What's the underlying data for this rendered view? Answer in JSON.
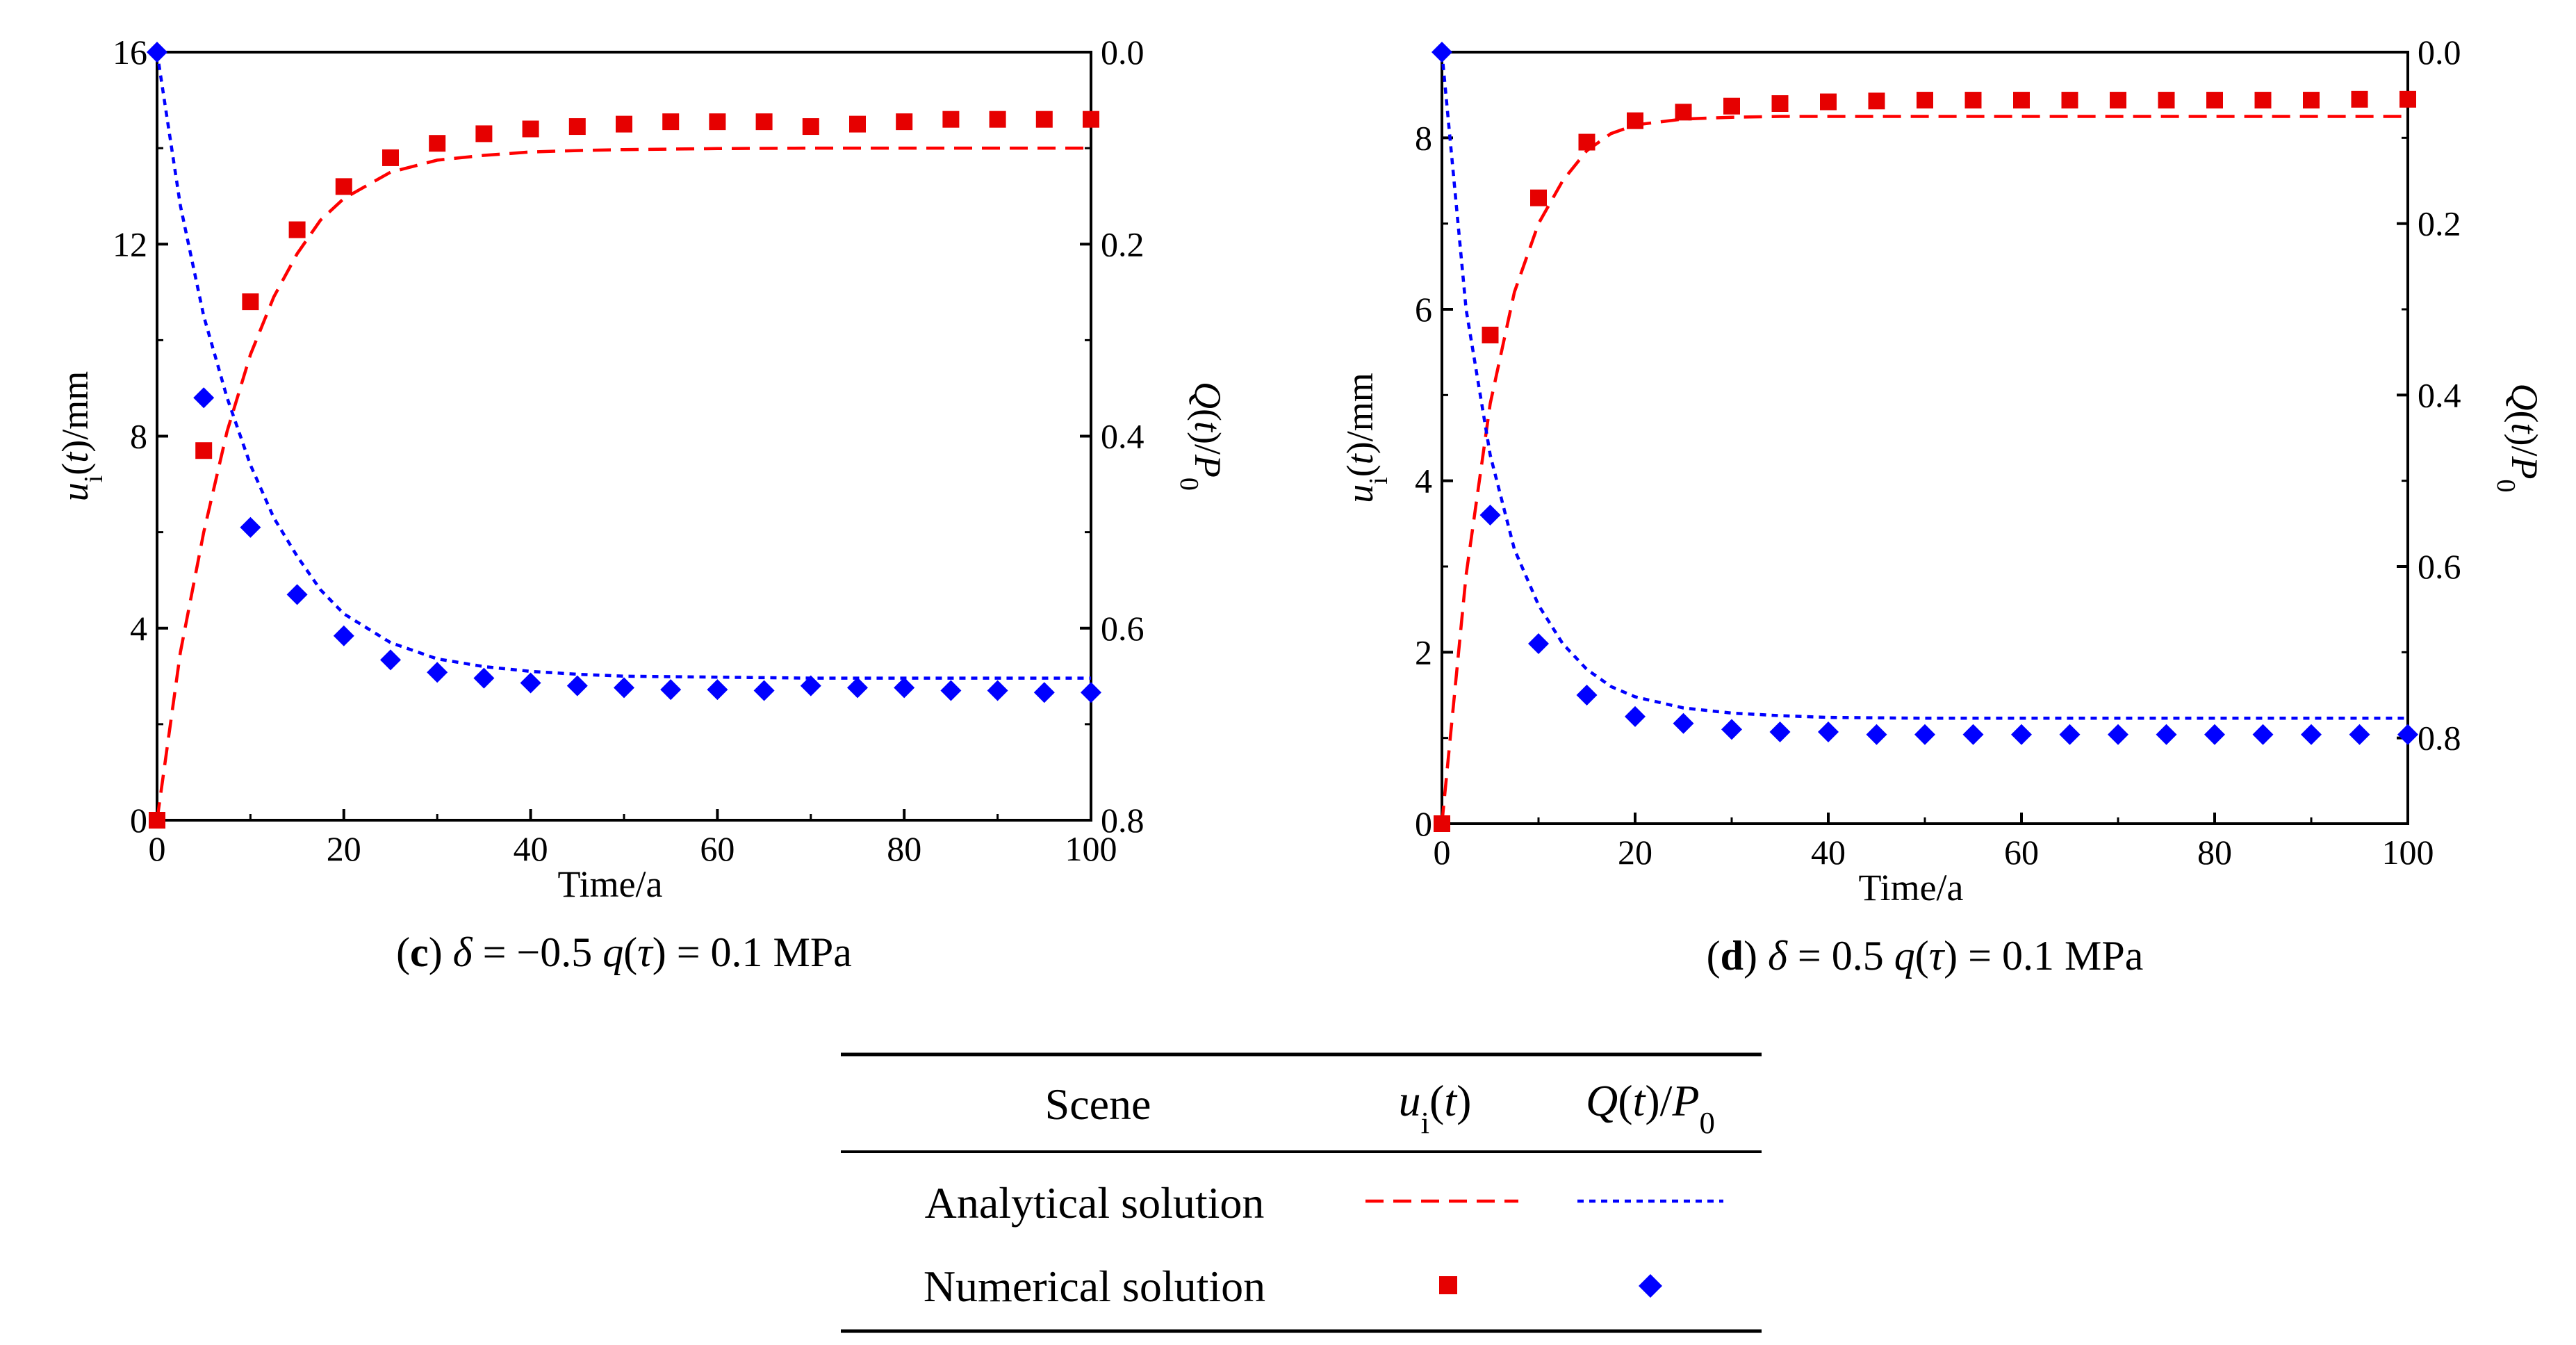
{
  "colors": {
    "analytical_u": "#ff0000",
    "analytical_q": "#0000ff",
    "numerical_u": "#e60000",
    "numerical_q": "#0000ff",
    "axis": "#000000"
  },
  "chart_data": [
    {
      "type": "scatter",
      "panel": "c",
      "caption": {
        "letter": "(c)",
        "rest": " δ = −0.5 q(τ) = 0.1 MPa"
      },
      "xlabel": "Time/a",
      "ylabel": "u_i(t)/mm",
      "y2label": "Q(t)/P_0",
      "xlim": [
        0,
        100
      ],
      "ylim": [
        0,
        16
      ],
      "y2lim": [
        0.0,
        0.8
      ],
      "y2_inverted": true,
      "x_ticks": [
        "0",
        "20",
        "40",
        "60",
        "80",
        "100"
      ],
      "y_ticks": [
        "0",
        "4",
        "8",
        "12",
        "16"
      ],
      "y2_ticks": [
        "0.0",
        "0.2",
        "0.4",
        "0.6",
        "0.8"
      ],
      "series": [
        {
          "name": "Numerical u_i(t)",
          "axis": "left",
          "marker": "square",
          "x": [
            0,
            5,
            10,
            15,
            20,
            25,
            30,
            35,
            40,
            45,
            50,
            55,
            60,
            65,
            70,
            75,
            80,
            85,
            90,
            95,
            100
          ],
          "y": [
            0,
            7.7,
            10.8,
            12.3,
            13.2,
            13.8,
            14.1,
            14.3,
            14.4,
            14.45,
            14.5,
            14.55,
            14.55,
            14.55,
            14.45,
            14.5,
            14.55,
            14.6,
            14.6,
            14.6,
            14.6
          ]
        },
        {
          "name": "Numerical Q(t)/P0",
          "axis": "right",
          "marker": "diamond",
          "x": [
            0,
            5,
            10,
            15,
            20,
            25,
            30,
            35,
            40,
            45,
            50,
            55,
            60,
            65,
            70,
            75,
            80,
            85,
            90,
            95,
            100
          ],
          "y": [
            0.0,
            0.36,
            0.495,
            0.565,
            0.608,
            0.633,
            0.646,
            0.652,
            0.657,
            0.66,
            0.662,
            0.664,
            0.664,
            0.665,
            0.66,
            0.662,
            0.662,
            0.665,
            0.665,
            0.667,
            0.667
          ]
        },
        {
          "name": "Analytical u_i(t)",
          "axis": "left",
          "line": "dashed",
          "x": [
            0,
            2.5,
            5,
            7.5,
            10,
            12.5,
            15,
            17.5,
            20,
            25,
            30,
            35,
            40,
            45,
            50,
            60,
            70,
            80,
            90,
            100
          ],
          "y": [
            0,
            3.5,
            6.0,
            8.1,
            9.7,
            10.9,
            11.8,
            12.5,
            12.95,
            13.5,
            13.75,
            13.85,
            13.92,
            13.95,
            13.97,
            13.99,
            14.0,
            14.0,
            14.0,
            14.0
          ]
        },
        {
          "name": "Analytical Q(t)/P0",
          "axis": "right",
          "line": "dotted",
          "x": [
            0,
            2.5,
            5,
            7.5,
            10,
            12.5,
            15,
            17.5,
            20,
            25,
            30,
            35,
            40,
            45,
            50,
            60,
            70,
            80,
            90,
            100
          ],
          "y": [
            0.0,
            0.16,
            0.275,
            0.36,
            0.43,
            0.485,
            0.525,
            0.56,
            0.585,
            0.615,
            0.632,
            0.64,
            0.645,
            0.648,
            0.65,
            0.651,
            0.652,
            0.652,
            0.652,
            0.652
          ]
        }
      ]
    },
    {
      "type": "scatter",
      "panel": "d",
      "caption": {
        "letter": "(d)",
        "rest": " δ = 0.5 q(τ) = 0.1 MPa"
      },
      "xlabel": "Time/a",
      "ylabel": "u_i(t)/mm",
      "y2label": "Q(t)/P_0",
      "xlim": [
        0,
        100
      ],
      "ylim": [
        0,
        9
      ],
      "y2lim": [
        0.0,
        0.9
      ],
      "y2_inverted": true,
      "x_ticks": [
        "0",
        "20",
        "40",
        "60",
        "80",
        "100"
      ],
      "y_ticks": [
        "0",
        "2",
        "4",
        "6",
        "8"
      ],
      "y2_ticks": [
        "0.0",
        "0.2",
        "0.4",
        "0.6",
        "0.8"
      ],
      "series": [
        {
          "name": "Numerical u_i(t)",
          "axis": "left",
          "marker": "square",
          "x": [
            0,
            5,
            10,
            15,
            20,
            25,
            30,
            35,
            40,
            45,
            50,
            55,
            60,
            65,
            70,
            75,
            80,
            85,
            90,
            95,
            100
          ],
          "y": [
            0,
            5.7,
            7.3,
            7.95,
            8.2,
            8.3,
            8.37,
            8.4,
            8.42,
            8.43,
            8.44,
            8.44,
            8.44,
            8.44,
            8.44,
            8.44,
            8.44,
            8.44,
            8.44,
            8.45,
            8.45
          ]
        },
        {
          "name": "Numerical Q(t)/P0",
          "axis": "right",
          "marker": "diamond",
          "x": [
            0,
            5,
            10,
            15,
            20,
            25,
            30,
            35,
            40,
            45,
            50,
            55,
            60,
            65,
            70,
            75,
            80,
            85,
            90,
            95,
            100
          ],
          "y": [
            0.0,
            0.54,
            0.69,
            0.75,
            0.775,
            0.783,
            0.79,
            0.793,
            0.793,
            0.796,
            0.796,
            0.796,
            0.796,
            0.796,
            0.796,
            0.796,
            0.796,
            0.796,
            0.796,
            0.796,
            0.796
          ]
        },
        {
          "name": "Analytical u_i(t)",
          "axis": "left",
          "line": "dashed",
          "x": [
            0,
            2.5,
            5,
            7.5,
            10,
            12.5,
            15,
            17.5,
            20,
            25,
            30,
            35,
            40,
            50,
            60,
            70,
            80,
            90,
            100
          ],
          "y": [
            0,
            2.9,
            4.9,
            6.2,
            7.0,
            7.5,
            7.85,
            8.05,
            8.15,
            8.22,
            8.24,
            8.25,
            8.25,
            8.25,
            8.25,
            8.25,
            8.25,
            8.25,
            8.25
          ]
        },
        {
          "name": "Analytical Q(t)/P0",
          "axis": "right",
          "line": "dotted",
          "x": [
            0,
            2.5,
            5,
            7.5,
            10,
            12.5,
            15,
            17.5,
            20,
            25,
            30,
            35,
            40,
            50,
            60,
            70,
            80,
            90,
            100
          ],
          "y": [
            0.0,
            0.3,
            0.47,
            0.58,
            0.645,
            0.69,
            0.72,
            0.74,
            0.752,
            0.765,
            0.771,
            0.774,
            0.776,
            0.777,
            0.777,
            0.777,
            0.777,
            0.777,
            0.777
          ]
        }
      ]
    }
  ],
  "legend_table": {
    "col_scene": "Scene",
    "col_u": "u_i(t)",
    "col_q": "Q(t)/P_0",
    "row_analytical": "Analytical solution",
    "row_numerical": "Numerical solution"
  }
}
